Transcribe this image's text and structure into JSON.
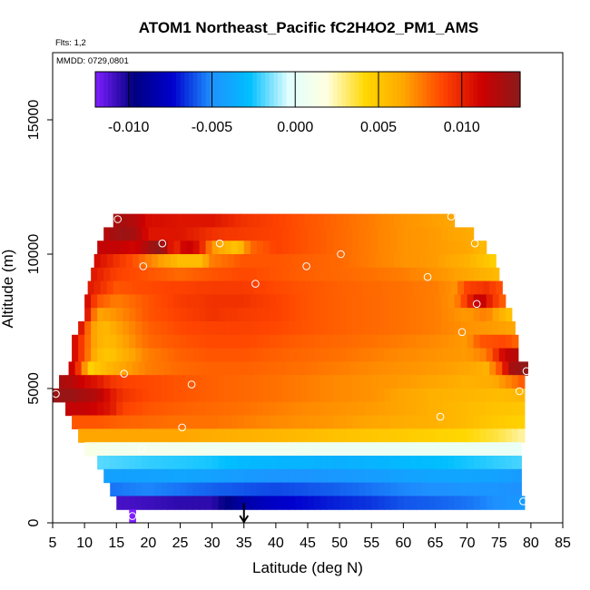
{
  "chart_data": {
    "type": "heatmap",
    "title": "ATOM1 Northeast_Pacific fC2H4O2_PM1_AMS",
    "annotations": [
      "Flts: 1,2",
      "MMDD: 0729,0801"
    ],
    "xlabel": "Latitude (deg N)",
    "ylabel": "Altitude (m)",
    "xlim": [
      5,
      85
    ],
    "ylim": [
      0,
      17500
    ],
    "x_ticks": [
      "5",
      "10",
      "15",
      "20",
      "25",
      "30",
      "35",
      "40",
      "45",
      "50",
      "55",
      "60",
      "65",
      "70",
      "75",
      "80",
      "85"
    ],
    "y_ticks": [
      "0",
      "5000",
      "10000",
      "15000"
    ],
    "grid": false,
    "colorbar": {
      "position": "top",
      "range": [
        -0.012,
        0.0135
      ],
      "ticks": [
        "-0.010",
        "-0.005",
        "0.000",
        "0.005",
        "0.010"
      ],
      "colors": [
        "#7f1fff",
        "#000080",
        "#0000cd",
        "#1e90ff",
        "#00bfff",
        "#e0ffff",
        "#ffffe0",
        "#ffd700",
        "#ffa500",
        "#ff4500",
        "#cd0000",
        "#8b1a1a"
      ]
    },
    "marker_latitude": 35,
    "grid_rows": [
      {
        "altitude": 11250,
        "lat_start": 14.5,
        "lat_end": 68,
        "values": {
          "14.5": 0.0125,
          "16": 0.0125,
          "18": 0.012,
          "20": 0.0108,
          "25": 0.0105,
          "30": 0.0105,
          "35": 0.0095,
          "40": 0.009,
          "45": 0.0085,
          "50": 0.008,
          "55": 0.0075,
          "60": 0.007,
          "68": 0.0065
        }
      },
      {
        "altitude": 10750,
        "lat_start": 13,
        "lat_end": 71,
        "values": {
          "13": 0.012,
          "16": 0.013,
          "18": 0.0125,
          "20": 0.0105,
          "25": 0.0105,
          "30": 0.0095,
          "35": 0.0092,
          "40": 0.009,
          "45": 0.0085,
          "50": 0.008,
          "55": 0.0075,
          "60": 0.007,
          "65": 0.0068,
          "71": 0.0062
        }
      },
      {
        "altitude": 10250,
        "lat_start": 12,
        "lat_end": 73,
        "values": {
          "12": 0.0115,
          "15": 0.0115,
          "18": 0.011,
          "20": 0.0125,
          "22": 0.0135,
          "24": 0.0095,
          "26": 0.0115,
          "28": 0.0105,
          "30": 0.007,
          "34": 0.005,
          "36": 0.008,
          "40": 0.009,
          "45": 0.0085,
          "50": 0.008,
          "55": 0.0075,
          "60": 0.007,
          "65": 0.0068,
          "70": 0.0065,
          "73": 0.0055
        }
      },
      {
        "altitude": 9750,
        "lat_start": 11.5,
        "lat_end": 74.5,
        "values": {
          "11.5": 0.011,
          "15": 0.0095,
          "18": 0.0085,
          "20": 0.0075,
          "25": 0.0055,
          "28": 0.0055,
          "30": 0.0075,
          "35": 0.0085,
          "40": 0.0085,
          "45": 0.0082,
          "50": 0.008,
          "55": 0.0075,
          "60": 0.007,
          "65": 0.0068,
          "70": 0.006,
          "74.5": 0.0045
        }
      },
      {
        "altitude": 9250,
        "lat_start": 11,
        "lat_end": 75,
        "values": {
          "11": 0.0105,
          "15": 0.009,
          "20": 0.0085,
          "25": 0.008,
          "30": 0.0085,
          "35": 0.0088,
          "40": 0.0085,
          "45": 0.0082,
          "50": 0.008,
          "55": 0.0078,
          "60": 0.0075,
          "65": 0.007,
          "70": 0.0065,
          "75": 0.0055
        }
      },
      {
        "altitude": 8750,
        "lat_start": 10.5,
        "lat_end": 75.5,
        "values": {
          "10.5": 0.0105,
          "15": 0.0085,
          "20": 0.0088,
          "25": 0.009,
          "30": 0.0092,
          "35": 0.0092,
          "40": 0.0088,
          "45": 0.0085,
          "50": 0.0082,
          "55": 0.008,
          "60": 0.0078,
          "65": 0.0075,
          "68": 0.007,
          "70": 0.009,
          "73": 0.0095,
          "75.5": 0.0085
        }
      },
      {
        "altitude": 8250,
        "lat_start": 10,
        "lat_end": 76,
        "values": {
          "10": 0.0115,
          "12": 0.0085,
          "15": 0.0075,
          "20": 0.0085,
          "25": 0.0092,
          "30": 0.0095,
          "35": 0.0095,
          "40": 0.009,
          "45": 0.0085,
          "50": 0.0082,
          "55": 0.008,
          "60": 0.0078,
          "65": 0.0075,
          "68": 0.007,
          "70": 0.0095,
          "72": 0.012,
          "74": 0.0095,
          "76": 0.008
        }
      },
      {
        "altitude": 7750,
        "lat_start": 10,
        "lat_end": 77,
        "values": {
          "10": 0.0115,
          "12": 0.0065,
          "15": 0.007,
          "20": 0.0085,
          "25": 0.009,
          "30": 0.0095,
          "35": 0.0092,
          "40": 0.009,
          "45": 0.0085,
          "50": 0.0082,
          "55": 0.008,
          "60": 0.0078,
          "65": 0.0075,
          "70": 0.0068,
          "73": 0.0075,
          "77": 0.005
        }
      },
      {
        "altitude": 7250,
        "lat_start": 9,
        "lat_end": 77.5,
        "values": {
          "9": 0.0115,
          "11": 0.007,
          "13": 0.0055,
          "15": 0.0065,
          "20": 0.0082,
          "25": 0.0088,
          "30": 0.009,
          "35": 0.009,
          "40": 0.0088,
          "45": 0.0085,
          "50": 0.0082,
          "55": 0.008,
          "60": 0.0078,
          "65": 0.0075,
          "70": 0.007,
          "74": 0.0068,
          "77.5": 0.0065
        }
      },
      {
        "altitude": 6750,
        "lat_start": 8,
        "lat_end": 78,
        "values": {
          "8": 0.0115,
          "10": 0.0085,
          "12": 0.006,
          "14": 0.0055,
          "16": 0.0065,
          "20": 0.008,
          "25": 0.0085,
          "30": 0.0088,
          "35": 0.0088,
          "40": 0.0085,
          "45": 0.0082,
          "50": 0.008,
          "55": 0.0078,
          "60": 0.0075,
          "65": 0.0072,
          "70": 0.0068,
          "72": 0.0085,
          "76": 0.0088,
          "78": 0.008
        }
      },
      {
        "altitude": 6250,
        "lat_start": 8,
        "lat_end": 78,
        "values": {
          "8": 0.0115,
          "10": 0.0085,
          "12": 0.0055,
          "14": 0.005,
          "16": 0.006,
          "20": 0.0075,
          "25": 0.0082,
          "30": 0.0085,
          "35": 0.0085,
          "40": 0.0082,
          "45": 0.008,
          "50": 0.0078,
          "55": 0.0075,
          "60": 0.0072,
          "65": 0.007,
          "70": 0.0068,
          "73": 0.0075,
          "76": 0.0115,
          "78": 0.012
        }
      },
      {
        "altitude": 5750,
        "lat_start": 7.5,
        "lat_end": 79.5,
        "values": {
          "7.5": 0.012,
          "9": 0.0095,
          "11": 0.0045,
          "13": 0.0055,
          "16": 0.0065,
          "20": 0.0075,
          "25": 0.008,
          "30": 0.0082,
          "35": 0.0082,
          "40": 0.008,
          "45": 0.0078,
          "50": 0.0075,
          "55": 0.0072,
          "60": 0.007,
          "65": 0.0068,
          "70": 0.0065,
          "73": 0.006,
          "75": 0.0085,
          "77": 0.0125,
          "79.5": 0.0135
        }
      },
      {
        "altitude": 5250,
        "lat_start": 6,
        "lat_end": 79,
        "values": {
          "6": 0.0125,
          "8": 0.012,
          "10": 0.011,
          "12": 0.0105,
          "14": 0.0095,
          "16": 0.009,
          "20": 0.0088,
          "25": 0.0085,
          "30": 0.0082,
          "35": 0.008,
          "40": 0.0078,
          "45": 0.0075,
          "50": 0.0072,
          "55": 0.007,
          "60": 0.0068,
          "65": 0.0065,
          "70": 0.006,
          "74": 0.0062,
          "77": 0.0075,
          "79": 0.0085
        }
      },
      {
        "altitude": 4750,
        "lat_start": 5,
        "lat_end": 79,
        "values": {
          "5": 0.013,
          "8": 0.013,
          "10": 0.0125,
          "12": 0.012,
          "14": 0.0105,
          "16": 0.0095,
          "20": 0.0088,
          "25": 0.0085,
          "30": 0.0082,
          "35": 0.008,
          "40": 0.0078,
          "45": 0.0075,
          "50": 0.0072,
          "55": 0.007,
          "60": 0.0065,
          "65": 0.006,
          "70": 0.0058,
          "75": 0.0055,
          "79": 0.0058
        }
      },
      {
        "altitude": 4250,
        "lat_start": 7,
        "lat_end": 79,
        "values": {
          "7": 0.0115,
          "10": 0.0115,
          "14": 0.0105,
          "16": 0.009,
          "20": 0.0085,
          "25": 0.0082,
          "30": 0.008,
          "35": 0.0078,
          "40": 0.0075,
          "45": 0.0072,
          "50": 0.007,
          "55": 0.0068,
          "60": 0.0065,
          "65": 0.006,
          "70": 0.0055,
          "75": 0.0052,
          "79": 0.005
        }
      },
      {
        "altitude": 3750,
        "lat_start": 8,
        "lat_end": 79,
        "values": {
          "8": 0.0085,
          "12": 0.0085,
          "15": 0.0082,
          "20": 0.008,
          "25": 0.0078,
          "30": 0.0078,
          "35": 0.0075,
          "40": 0.0072,
          "45": 0.007,
          "50": 0.0068,
          "55": 0.0065,
          "60": 0.0062,
          "65": 0.006,
          "70": 0.0055,
          "75": 0.0048,
          "79": 0.0045
        }
      },
      {
        "altitude": 3250,
        "lat_start": 9,
        "lat_end": 79,
        "values": {
          "9": 0.0065,
          "15": 0.0065,
          "20": 0.0065,
          "25": 0.0065,
          "30": 0.0062,
          "35": 0.006,
          "40": 0.0058,
          "45": 0.0055,
          "50": 0.0052,
          "55": 0.005,
          "60": 0.0048,
          "65": 0.0045,
          "70": 0.0042,
          "75": 0.0035,
          "79": 0.0025
        }
      },
      {
        "altitude": 2750,
        "lat_start": 10,
        "lat_end": 78.5,
        "values": {
          "10": 0.0015,
          "15": 0.001,
          "20": 0.001,
          "25": 0.001,
          "30": 0.0008,
          "35": 0.0008,
          "40": 0.0008,
          "45": 0.0007,
          "50": 0.0006,
          "55": 0.0006,
          "60": 0.0005,
          "65": 0.0005,
          "70": 0.0005,
          "75": 0.0004,
          "78.5": 0.0003
        }
      },
      {
        "altitude": 2250,
        "lat_start": 12,
        "lat_end": 78.5,
        "values": {
          "12": -0.0018,
          "20": -0.0022,
          "30": -0.0025,
          "35": -0.003,
          "40": -0.0032,
          "45": -0.0033,
          "50": -0.0035,
          "55": -0.0033,
          "60": -0.003,
          "65": -0.0028,
          "70": -0.0025,
          "75": -0.0022,
          "78.5": -0.002
        }
      },
      {
        "altitude": 1750,
        "lat_start": 13,
        "lat_end": 78.5,
        "values": {
          "13": -0.0042,
          "20": -0.0042,
          "25": -0.004,
          "30": -0.0042,
          "35": -0.0045,
          "40": -0.0048,
          "45": -0.0048,
          "50": -0.0046,
          "55": -0.0044,
          "60": -0.0042,
          "65": -0.004,
          "70": -0.004,
          "75": -0.0042,
          "78.5": -0.0045
        }
      },
      {
        "altitude": 1250,
        "lat_start": 14,
        "lat_end": 78.5,
        "values": {
          "14": -0.0055,
          "20": -0.0052,
          "25": -0.0055,
          "30": -0.0058,
          "35": -0.006,
          "40": -0.0062,
          "45": -0.006,
          "50": -0.0058,
          "55": -0.0055,
          "60": -0.0052,
          "65": -0.005,
          "70": -0.0048,
          "75": -0.0048,
          "78.5": -0.005
        }
      },
      {
        "altitude": 750,
        "lat_start": 15,
        "lat_end": 79,
        "values": {
          "15": -0.011,
          "20": -0.0108,
          "25": -0.0105,
          "30": -0.0105,
          "35": -0.0085,
          "40": -0.0075,
          "45": -0.0072,
          "50": -0.0068,
          "55": -0.0065,
          "60": -0.006,
          "65": -0.0058,
          "70": -0.0055,
          "75": -0.005,
          "79": -0.0045
        }
      },
      {
        "altitude": 250,
        "lat_start": 17,
        "lat_end": 18,
        "values": {
          "17": -0.012
        }
      }
    ],
    "circle_markers": [
      {
        "lat": 15.2,
        "alt": 11300
      },
      {
        "lat": 22.2,
        "alt": 10400
      },
      {
        "lat": 31.2,
        "alt": 10400
      },
      {
        "lat": 19.2,
        "alt": 9550
      },
      {
        "lat": 44.8,
        "alt": 9550
      },
      {
        "lat": 50.2,
        "alt": 10000
      },
      {
        "lat": 67.5,
        "alt": 11400
      },
      {
        "lat": 71.2,
        "alt": 10400
      },
      {
        "lat": 63.8,
        "alt": 9150
      },
      {
        "lat": 36.8,
        "alt": 8900
      },
      {
        "lat": 71.5,
        "alt": 8150
      },
      {
        "lat": 69.2,
        "alt": 7100
      },
      {
        "lat": 16.2,
        "alt": 5550
      },
      {
        "lat": 26.8,
        "alt": 5150
      },
      {
        "lat": 5.5,
        "alt": 4800
      },
      {
        "lat": 79.3,
        "alt": 5650
      },
      {
        "lat": 78.2,
        "alt": 4900
      },
      {
        "lat": 65.8,
        "alt": 3950
      },
      {
        "lat": 25.3,
        "alt": 3550
      },
      {
        "lat": 19.0,
        "alt": 2750
      },
      {
        "lat": 78.8,
        "alt": 800
      },
      {
        "lat": 17.5,
        "alt": 250
      }
    ]
  }
}
